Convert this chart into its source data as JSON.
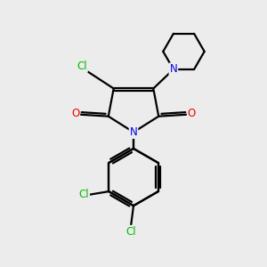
{
  "bg_color": "#ececec",
  "bond_color": "#000000",
  "bond_width": 1.6,
  "atom_colors": {
    "Cl": "#00bb00",
    "N": "#0000ee",
    "O": "#ee0000",
    "C": "#000000"
  },
  "font_size_atom": 8.5
}
